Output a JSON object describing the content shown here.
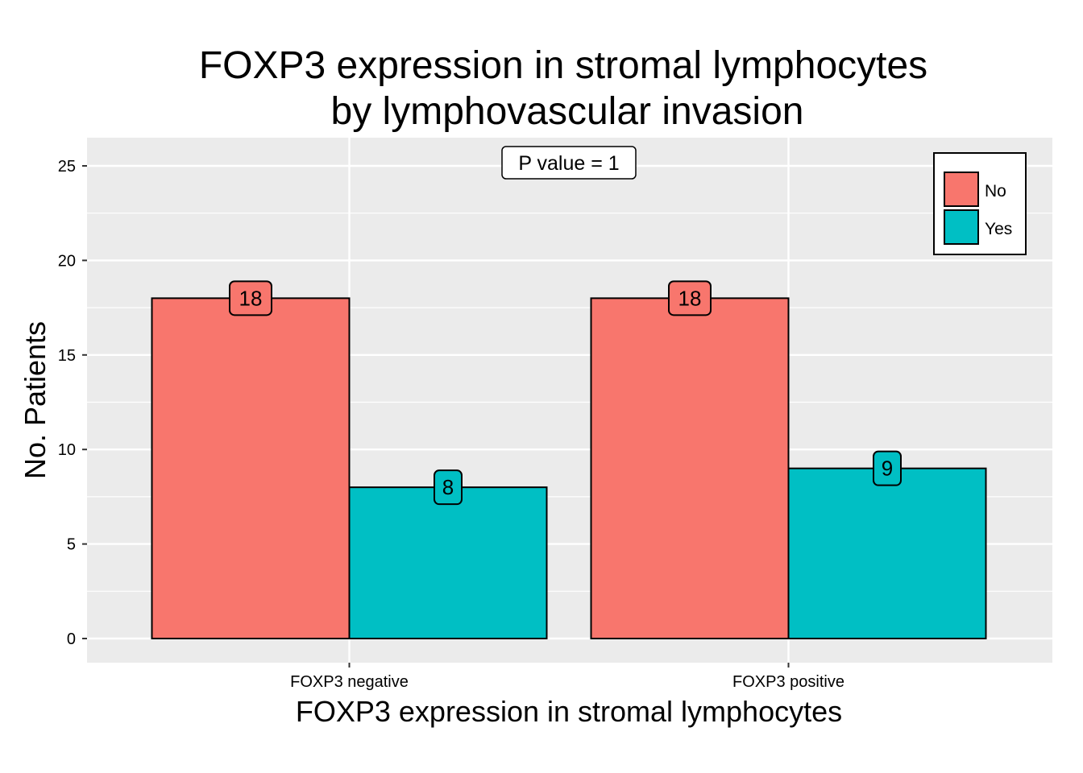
{
  "chart_data": {
    "type": "bar",
    "title_lines": [
      "FOXP3 expression in stromal lymphocytes",
      "by lymphovascular invasion"
    ],
    "xlabel": "FOXP3 expression in stromal lymphocytes",
    "ylabel": "No. Patients",
    "categories": [
      "FOXP3 negative",
      "FOXP3 positive"
    ],
    "series": [
      {
        "name": "No",
        "values": [
          18,
          18
        ],
        "color": "#F8766D"
      },
      {
        "name": "Yes",
        "values": [
          8,
          9
        ],
        "color": "#00BFC4"
      }
    ],
    "ylim": [
      -1.2,
      26.5
    ],
    "yticks": [
      0,
      5,
      10,
      15,
      20,
      25
    ],
    "grid": true,
    "panel_background": "#EBEBEB",
    "grid_color": "#FFFFFF",
    "legend_position": "top-right",
    "annotation": "P value = 1"
  }
}
